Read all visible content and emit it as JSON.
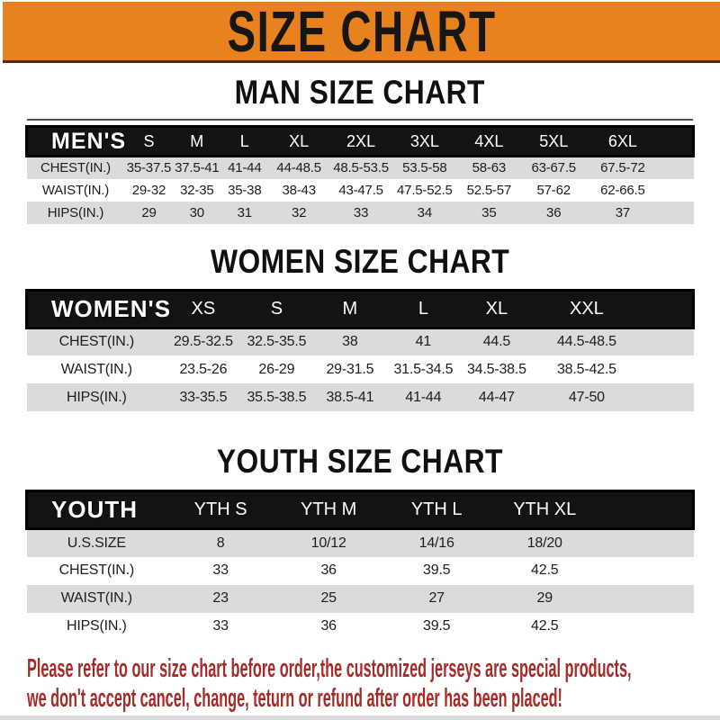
{
  "banner": {
    "title": "SIZE CHART"
  },
  "colors": {
    "accent": "#E8821E",
    "note_red": "#A42B28",
    "header_black": "#131313",
    "row_gray": "#DBDBDB"
  },
  "sections": [
    {
      "heading": "MAN SIZE CHART",
      "table": {
        "group_label": "MEN'S",
        "header": [
          "MEN'S",
          "S",
          "M",
          "L",
          "XL",
          "2XL",
          "3XL",
          "4XL",
          "5XL",
          "6XL"
        ],
        "rows": [
          [
            "CHEST(IN.)",
            "35-37.5",
            "37.5-41",
            "41-44",
            "44-48.5",
            "48.5-53.5",
            "53.5-58",
            "58-63",
            "63-67.5",
            "67.5-72"
          ],
          [
            "WAIST(IN.)",
            "29-32",
            "32-35",
            "35-38",
            "38-43",
            "43-47.5",
            "47.5-52.5",
            "52.5-57",
            "57-62",
            "62-66.5"
          ],
          [
            "HIPS(IN.)",
            "29",
            "30",
            "31",
            "32",
            "33",
            "34",
            "35",
            "36",
            "37"
          ]
        ]
      }
    },
    {
      "heading": "WOMEN SIZE CHART",
      "table": {
        "group_label": "WOMEN'S",
        "header": [
          "WOMEN'S",
          "XS",
          "S",
          "M",
          "L",
          "XL",
          "XXL"
        ],
        "rows": [
          [
            "CHEST(IN.)",
            "29.5-32.5",
            "32.5-35.5",
            "38",
            "41",
            "44.5",
            "44.5-48.5"
          ],
          [
            "WAIST(IN.)",
            "23.5-26",
            "26-29",
            "29-31.5",
            "31.5-34.5",
            "34.5-38.5",
            "38.5-42.5"
          ],
          [
            "HIPS(IN.)",
            "33-35.5",
            "35.5-38.5",
            "38.5-41",
            "41-44",
            "44-47",
            "47-50"
          ]
        ]
      }
    },
    {
      "heading": "YOUTH SIZE CHART",
      "table": {
        "group_label": "YOUTH",
        "header": [
          "YOUTH",
          "YTH S",
          "YTH M",
          "YTH L",
          "YTH XL"
        ],
        "rows": [
          [
            "U.S.SIZE",
            "8",
            "10/12",
            "14/16",
            "18/20"
          ],
          [
            "CHEST(IN.)",
            "33",
            "36",
            "39.5",
            "42.5"
          ],
          [
            "WAIST(IN.)",
            "23",
            "25",
            "27",
            "29"
          ],
          [
            "HIPS(IN.)",
            "33",
            "36",
            "39.5",
            "42.5"
          ]
        ]
      }
    }
  ],
  "footer": {
    "line1": "Please refer to our size chart before order,the customized jerseys are special products,",
    "line2": "we don't accept cancel, change, teturn or refund after order has been placed!"
  }
}
